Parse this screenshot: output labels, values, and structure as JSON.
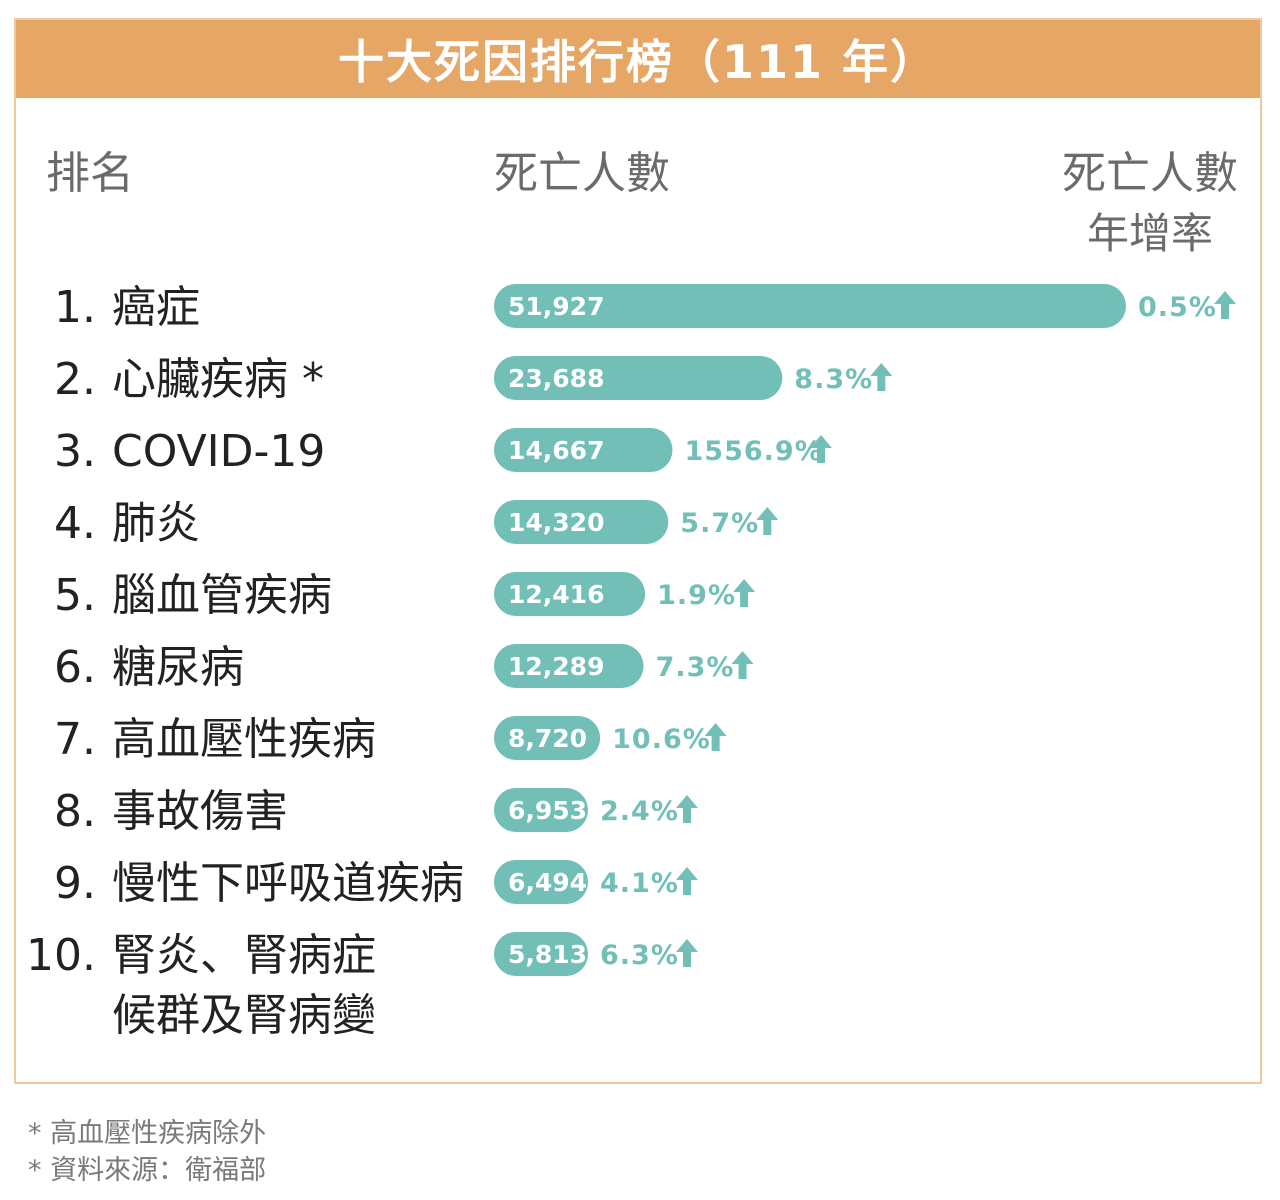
{
  "title": "十大死因排行榜（111 年）",
  "headers": {
    "rank": "排名",
    "deaths": "死亡人數",
    "growth_line1": "死亡人數",
    "growth_line2": "年增率"
  },
  "footnotes": [
    "* 高血壓性疾病除外",
    "* 資料來源：衛福部"
  ],
  "colors": {
    "header_bg": "#e6a666",
    "bar": "#72bfb8",
    "growth_text": "#72bfb8",
    "border": "#f0c9a0"
  },
  "chart_data": {
    "type": "bar",
    "orientation": "horizontal",
    "title": "十大死因排行榜（111 年）",
    "categories": [
      "1. 癌症",
      "2. 心臟疾病 *",
      "3. COVID-19",
      "4. 肺炎",
      "5. 腦血管疾病",
      "6. 糖尿病",
      "7. 高血壓性疾病",
      "8. 事故傷害",
      "9. 慢性下呼吸道疾病",
      "10. 腎炎、腎病症候群及腎病變"
    ],
    "rows": [
      {
        "rank": "1.",
        "name": [
          "癌症"
        ],
        "deaths": 51927,
        "deaths_label": "51,927",
        "growth": "0.5%"
      },
      {
        "rank": "2.",
        "name": [
          "心臟疾病 *"
        ],
        "deaths": 23688,
        "deaths_label": "23,688",
        "growth": "8.3%"
      },
      {
        "rank": "3.",
        "name": [
          "COVID-19"
        ],
        "deaths": 14667,
        "deaths_label": "14,667",
        "growth": "1556.9%"
      },
      {
        "rank": "4.",
        "name": [
          "肺炎"
        ],
        "deaths": 14320,
        "deaths_label": "14,320",
        "growth": "5.7%"
      },
      {
        "rank": "5.",
        "name": [
          "腦血管疾病"
        ],
        "deaths": 12416,
        "deaths_label": "12,416",
        "growth": "1.9%"
      },
      {
        "rank": "6.",
        "name": [
          "糖尿病"
        ],
        "deaths": 12289,
        "deaths_label": "12,289",
        "growth": "7.3%"
      },
      {
        "rank": "7.",
        "name": [
          "高血壓性疾病"
        ],
        "deaths": 8720,
        "deaths_label": "8,720",
        "growth": "10.6%"
      },
      {
        "rank": "8.",
        "name": [
          "事故傷害"
        ],
        "deaths": 6953,
        "deaths_label": "6,953",
        "growth": "2.4%"
      },
      {
        "rank": "9.",
        "name": [
          "慢性下呼吸道疾病"
        ],
        "deaths": 6494,
        "deaths_label": "6,494",
        "growth": "4.1%"
      },
      {
        "rank": "10.",
        "name": [
          "腎炎、腎病症",
          "候群及腎病變"
        ],
        "deaths": 5813,
        "deaths_label": "5,813",
        "growth": "6.3%"
      }
    ],
    "series": [
      {
        "name": "死亡人數",
        "values": [
          51927,
          23688,
          14667,
          14320,
          12416,
          12289,
          8720,
          6953,
          6494,
          5813
        ]
      }
    ],
    "growth_direction": "up",
    "xlabel": "",
    "ylabel": "",
    "grid": false
  }
}
